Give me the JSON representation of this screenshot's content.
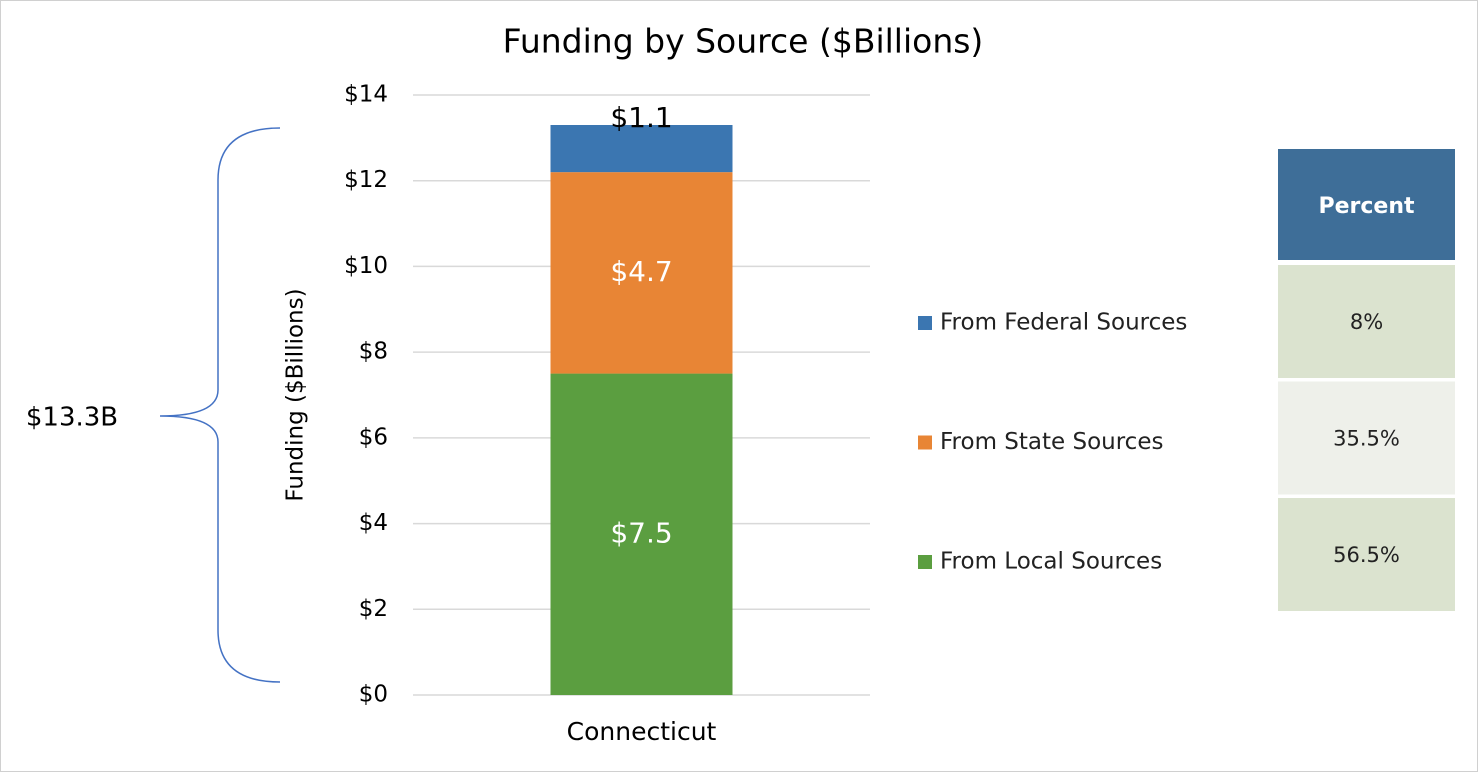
{
  "chart_data": {
    "type": "stacked_bar",
    "title": "Funding by Source ($Billions)",
    "y_label": "Funding ($Billions)",
    "annotation": "$13.3B",
    "categories": [
      "Connecticut"
    ],
    "series": [
      {
        "name": "From Federal Sources",
        "color": "#3b76b1",
        "label_color": "#000000",
        "values": [
          1.1
        ],
        "value_labels": [
          "$1.1"
        ]
      },
      {
        "name": "From State Sources",
        "color": "#e88535",
        "label_color": "#ffffff",
        "values": [
          4.7
        ],
        "value_labels": [
          "$4.7"
        ]
      },
      {
        "name": "From Local Sources",
        "color": "#5b9e40",
        "label_color": "#ffffff",
        "values": [
          7.5
        ],
        "value_labels": [
          "$7.5"
        ]
      }
    ],
    "ylim": [
      0,
      14
    ],
    "yticks": [
      {
        "value": 0,
        "label": "$0"
      },
      {
        "value": 2,
        "label": "$2"
      },
      {
        "value": 4,
        "label": "$4"
      },
      {
        "value": 6,
        "label": "$6"
      },
      {
        "value": 8,
        "label": "$8"
      },
      {
        "value": 10,
        "label": "$10"
      },
      {
        "value": 12,
        "label": "$12"
      },
      {
        "value": 14,
        "label": "$14"
      }
    ],
    "grid": true
  },
  "table": {
    "header": "Percent",
    "rows": [
      "8%",
      "35.5%",
      "56.5%"
    ]
  }
}
